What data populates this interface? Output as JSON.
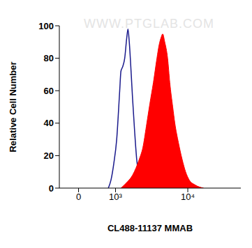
{
  "chart_data": {
    "type": "area",
    "xlabel": "CL488-11137 MMAB",
    "ylabel": "Relative Cell Number",
    "annotations": [
      "WWW.PTGLAB.COM"
    ],
    "xlim": [
      -450,
      50000
    ],
    "xticks": [
      0,
      {
        "value": 1000,
        "label": "10³"
      },
      {
        "value": 10000,
        "label": "10⁴"
      }
    ],
    "ylim": [
      0,
      100
    ],
    "yticks": [
      0,
      20,
      40,
      60,
      80,
      100
    ],
    "series": [
      {
        "type": "line",
        "color": "#1a1a8c",
        "x": [
          752,
          839,
          936,
          1045,
          1166,
          1218,
          1301,
          1389,
          1484,
          1551,
          1620,
          1729,
          1807,
          1931,
          2062,
          2203,
          2353,
          2568
        ],
        "values": [
          0,
          5,
          15,
          30,
          60,
          72,
          75,
          80,
          92,
          98,
          90,
          70,
          55,
          35,
          18,
          8,
          3,
          0
        ]
      },
      {
        "type": "area",
        "color": "#ff0000",
        "x": [
          1218,
          1452,
          1807,
          2251,
          2512,
          2801,
          3127,
          3489,
          3893,
          4157,
          4441,
          4645,
          4955,
          5408,
          5780,
          6325,
          6744,
          7524,
          8393,
          9366,
          10446,
          12437,
          16170
        ],
        "values": [
          0,
          3,
          8,
          18,
          25,
          38,
          52,
          65,
          80,
          88,
          93,
          95,
          90,
          80,
          65,
          50,
          40,
          28,
          18,
          10,
          5,
          2,
          0
        ]
      }
    ]
  }
}
